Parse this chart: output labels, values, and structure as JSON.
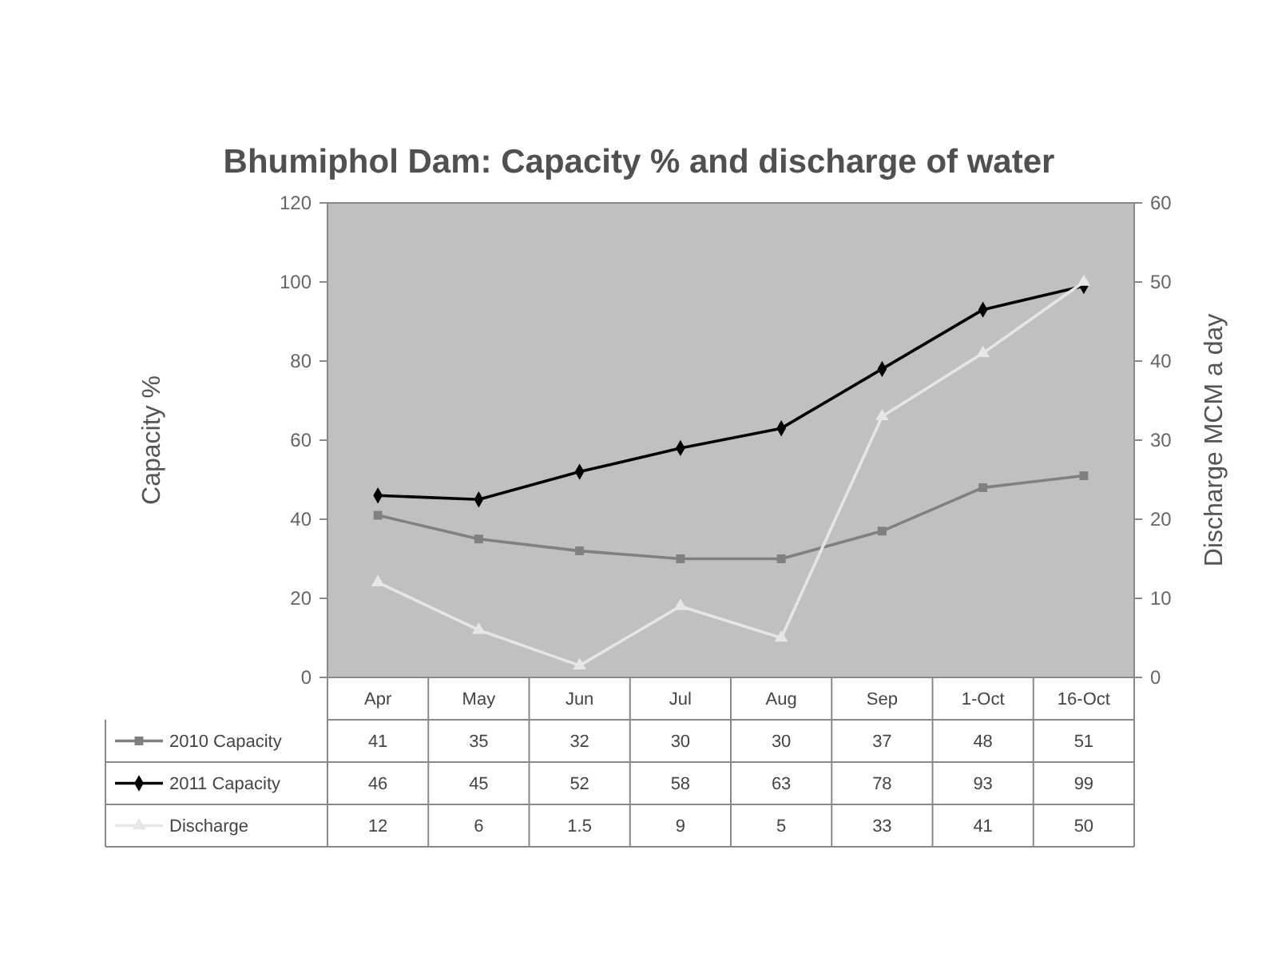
{
  "chart_data": {
    "type": "line",
    "title": "Bhumiphol Dam: Capacity % and discharge of water",
    "ylabel": "Capacity %",
    "y2label": "Discharge MCM a day",
    "categories": [
      "Apr",
      "May",
      "Jun",
      "Jul",
      "Aug",
      "Sep",
      "1-Oct",
      "16-Oct"
    ],
    "series": [
      {
        "name": "2010 Capacity",
        "color": "#808080",
        "marker": "square",
        "values": [
          41,
          35,
          32,
          30,
          30,
          37,
          48,
          51
        ]
      },
      {
        "name": "2011 Capacity",
        "color": "#000000",
        "marker": "diamond",
        "values": [
          46,
          45,
          52,
          58,
          63,
          78,
          93,
          99
        ]
      },
      {
        "name": "Discharge",
        "color": "#e6e6e6",
        "marker": "triangle",
        "axis": "y2",
        "values": [
          12,
          6,
          1.5,
          9,
          5,
          33,
          41,
          50
        ]
      }
    ],
    "ylim": [
      0,
      120
    ],
    "yticks": [
      0,
      20,
      40,
      60,
      80,
      100,
      120
    ],
    "y2lim": [
      0,
      60
    ],
    "y2ticks": [
      0,
      10,
      20,
      30,
      40,
      50,
      60
    ],
    "data_labels": true,
    "legend": "bottom"
  }
}
